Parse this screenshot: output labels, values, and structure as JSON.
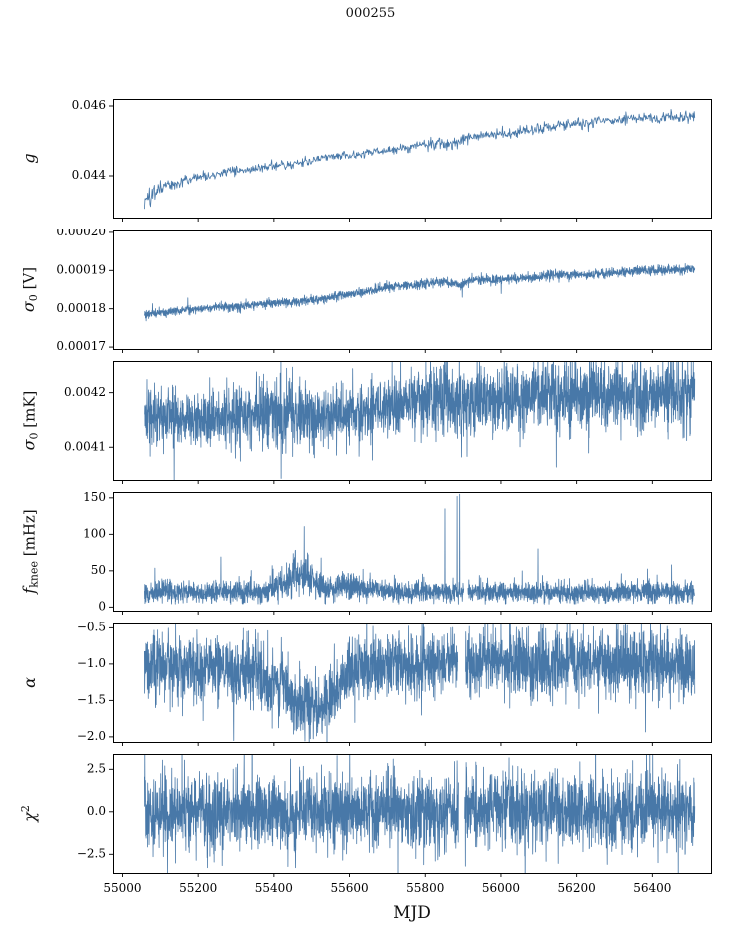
{
  "chart_data": {
    "type": "line",
    "title": "000255",
    "xlabel": "MJD",
    "line_color": "#4878a8",
    "frame_color": "#000000",
    "xlim": [
      54975,
      56555
    ],
    "xticks": [
      55000,
      55200,
      55400,
      55600,
      55800,
      56000,
      56200,
      56400
    ],
    "xtick_labels": [
      "55000",
      "55200",
      "55400",
      "55600",
      "55800",
      "56000",
      "56200",
      "56400"
    ],
    "panels": [
      {
        "id": "g",
        "label": {
          "symbol": "g",
          "sub": "",
          "sup": "",
          "unit": ""
        },
        "ylim": [
          0.0428,
          0.0462
        ],
        "yticks": [
          0.044,
          0.046
        ],
        "ytick_labels": [
          "0.044",
          "0.046"
        ],
        "series_model": {
          "seed": 11,
          "n": 1000,
          "x_start": 55058,
          "x_end": 56512,
          "trend": [
            [
              55058,
              0.0432
            ],
            [
              55090,
              0.0436
            ],
            [
              55130,
              0.04375
            ],
            [
              55200,
              0.04395
            ],
            [
              55260,
              0.0441
            ],
            [
              55320,
              0.04415
            ],
            [
              55380,
              0.04425
            ],
            [
              55440,
              0.0443
            ],
            [
              55500,
              0.04445
            ],
            [
              55560,
              0.04455
            ],
            [
              55620,
              0.0446
            ],
            [
              55680,
              0.0447
            ],
            [
              55740,
              0.0448
            ],
            [
              55800,
              0.0449
            ],
            [
              55840,
              0.04495
            ],
            [
              55870,
              0.0449
            ],
            [
              55910,
              0.0451
            ],
            [
              55960,
              0.04515
            ],
            [
              56020,
              0.0452
            ],
            [
              56080,
              0.0453
            ],
            [
              56140,
              0.0454
            ],
            [
              56200,
              0.0455
            ],
            [
              56260,
              0.04555
            ],
            [
              56320,
              0.0456
            ],
            [
              56380,
              0.04565
            ],
            [
              56440,
              0.0457
            ],
            [
              56500,
              0.0457
            ]
          ],
          "noise": [
            [
              55058,
              0.00013
            ],
            [
              55150,
              7e-05
            ],
            [
              55400,
              6e-05
            ],
            [
              55700,
              7e-05
            ],
            [
              56000,
              8e-05
            ],
            [
              56512,
              8e-05
            ]
          ],
          "spikes": [],
          "gaps": []
        }
      },
      {
        "id": "sigma0-v",
        "label": {
          "symbol": "σ",
          "sub": "0",
          "sup": "",
          "unit": " [V]"
        },
        "ylim": [
          0.0001695,
          0.0002005
        ],
        "yticks": [
          0.00017,
          0.00018,
          0.00019,
          0.0002
        ],
        "ytick_labels": [
          "0.00017",
          "0.00018",
          "0.00019",
          "0.00020"
        ],
        "series_model": {
          "seed": 22,
          "n": 2600,
          "x_start": 55058,
          "x_end": 56512,
          "trend": [
            [
              55058,
              0.0001785
            ],
            [
              55200,
              0.00018
            ],
            [
              55300,
              0.0001807
            ],
            [
              55400,
              0.0001814
            ],
            [
              55500,
              0.0001822
            ],
            [
              55600,
              0.0001838
            ],
            [
              55650,
              0.0001847
            ],
            [
              55700,
              0.0001856
            ],
            [
              55800,
              0.0001866
            ],
            [
              55850,
              0.000187
            ],
            [
              55893,
              0.0001862
            ],
            [
              55915,
              0.0001873
            ],
            [
              56000,
              0.0001877
            ],
            [
              56100,
              0.0001882
            ],
            [
              56160,
              0.0001889
            ],
            [
              56220,
              0.0001888
            ],
            [
              56300,
              0.0001894
            ],
            [
              56400,
              0.00019
            ],
            [
              56512,
              0.0001904
            ]
          ],
          "noise": [
            [
              55058,
              5.5e-07
            ],
            [
              56512,
              6.5e-07
            ]
          ],
          "tail_prob": 0.006,
          "tail_scale": 1.8,
          "spikes": [
            [
              55898,
              0.000183
            ]
          ],
          "gaps": []
        }
      },
      {
        "id": "sigma0-mk",
        "label": {
          "symbol": "σ",
          "sub": "0",
          "sup": "",
          "unit": " [mK]"
        },
        "ylim": [
          0.00404,
          0.004258
        ],
        "yticks": [
          0.0041,
          0.0042
        ],
        "ytick_labels": [
          "0.0041",
          "0.0042"
        ],
        "series_model": {
          "seed": 33,
          "n": 3000,
          "x_start": 55058,
          "x_end": 56512,
          "trend": [
            [
              55058,
              0.004162
            ],
            [
              55150,
              0.00415
            ],
            [
              55250,
              0.004152
            ],
            [
              55350,
              0.004157
            ],
            [
              55420,
              0.004163
            ],
            [
              55470,
              0.004158
            ],
            [
              55560,
              0.004161
            ],
            [
              55650,
              0.004168
            ],
            [
              55750,
              0.004182
            ],
            [
              55850,
              0.004188
            ],
            [
              55900,
              0.004178
            ],
            [
              55950,
              0.004188
            ],
            [
              56050,
              0.004193
            ],
            [
              56150,
              0.004198
            ],
            [
              56250,
              0.004199
            ],
            [
              56350,
              0.004197
            ],
            [
              56512,
              0.004199
            ]
          ],
          "noise": [
            [
              55058,
              2.6e-05
            ],
            [
              55200,
              2.2e-05
            ],
            [
              55420,
              3.4e-05
            ],
            [
              55520,
              2.6e-05
            ],
            [
              55700,
              2.6e-05
            ],
            [
              55860,
              3.2e-05
            ],
            [
              56000,
              3.1e-05
            ],
            [
              56200,
              3.3e-05
            ],
            [
              56512,
              3.1e-05
            ]
          ],
          "tail_prob": 0.008,
          "tail_scale": 2.0,
          "spikes": [
            [
              55896,
              0.004082
            ],
            [
              55901,
              0.00412
            ]
          ],
          "gaps": []
        }
      },
      {
        "id": "fknee",
        "label": {
          "symbol": "f",
          "sub": "knee",
          "sup": "",
          "unit": " [mHz]"
        },
        "ylim": [
          -5,
          158
        ],
        "yticks": [
          0,
          50,
          100,
          150
        ],
        "ytick_labels": [
          "0",
          "50",
          "100",
          "150"
        ],
        "series_model": {
          "seed": 44,
          "n": 3000,
          "x_start": 55058,
          "x_end": 56512,
          "trend": [
            [
              55058,
              20
            ],
            [
              55380,
              20
            ],
            [
              55425,
              32
            ],
            [
              55455,
              46
            ],
            [
              55490,
              42
            ],
            [
              55520,
              30
            ],
            [
              55555,
              24
            ],
            [
              55585,
              30
            ],
            [
              55615,
              26
            ],
            [
              55700,
              22
            ],
            [
              55850,
              21
            ],
            [
              56512,
              20
            ]
          ],
          "noise": [
            [
              55058,
              7
            ],
            [
              55380,
              8
            ],
            [
              55445,
              14
            ],
            [
              55520,
              10
            ],
            [
              55560,
              8
            ],
            [
              55600,
              10
            ],
            [
              55640,
              7
            ],
            [
              56000,
              7
            ],
            [
              56512,
              7
            ]
          ],
          "clip_min": 4,
          "tail_prob": 0.012,
          "tail_scale": 3,
          "tail_abs": true,
          "spikes": [
            [
              55338,
              42
            ],
            [
              55852,
              135
            ],
            [
              55884,
              152
            ],
            [
              55891,
              155
            ],
            [
              56098,
              80
            ],
            [
              56318,
              46
            ]
          ],
          "gaps": [
            [
              55902,
              55912
            ]
          ]
        }
      },
      {
        "id": "alpha",
        "label": {
          "symbol": "α",
          "sub": "",
          "sup": "",
          "unit": ""
        },
        "ylim": [
          -2.07,
          -0.44
        ],
        "yticks": [
          -0.5,
          -1.0,
          -1.5,
          -2.0
        ],
        "ytick_labels": [
          "−0.5",
          "−1.0",
          "−1.5",
          "−2.0"
        ],
        "series_model": {
          "seed": 55,
          "n": 3000,
          "x_start": 55058,
          "x_end": 56512,
          "trend": [
            [
              55058,
              -1.02
            ],
            [
              55250,
              -1.05
            ],
            [
              55350,
              -1.1
            ],
            [
              55420,
              -1.3
            ],
            [
              55450,
              -1.5
            ],
            [
              55480,
              -1.6
            ],
            [
              55520,
              -1.62
            ],
            [
              55555,
              -1.45
            ],
            [
              55585,
              -1.15
            ],
            [
              55650,
              -1.02
            ],
            [
              55800,
              -1.0
            ],
            [
              56512,
              -1.0
            ]
          ],
          "noise": [
            [
              55058,
              0.22
            ],
            [
              55380,
              0.24
            ],
            [
              55470,
              0.2
            ],
            [
              55560,
              0.22
            ],
            [
              56512,
              0.22
            ]
          ],
          "tail_prob": 0.01,
          "tail_scale": 1.8,
          "spikes": [],
          "gaps": [
            [
              55886,
              55906
            ]
          ]
        }
      },
      {
        "id": "chi2",
        "label": {
          "symbol": "χ",
          "sub": "",
          "sup": "2",
          "unit": ""
        },
        "ylim": [
          -3.6,
          3.4
        ],
        "yticks": [
          2.5,
          0.0,
          -2.5
        ],
        "ytick_labels": [
          "2.5",
          "0.0",
          "−2.5"
        ],
        "series_model": {
          "seed": 66,
          "n": 3000,
          "x_start": 55058,
          "x_end": 56512,
          "trend": [
            [
              55058,
              0
            ],
            [
              56512,
              0
            ]
          ],
          "noise": [
            [
              55058,
              1.05
            ],
            [
              56512,
              1.05
            ]
          ],
          "tail_prob": 0.02,
          "tail_scale": 1.6,
          "spikes": [
            [
              55884,
              3.0
            ],
            [
              55906,
              -3.2
            ],
            [
              55908,
              2.9
            ]
          ],
          "gaps": [
            [
              55888,
              55904
            ]
          ]
        }
      }
    ]
  }
}
